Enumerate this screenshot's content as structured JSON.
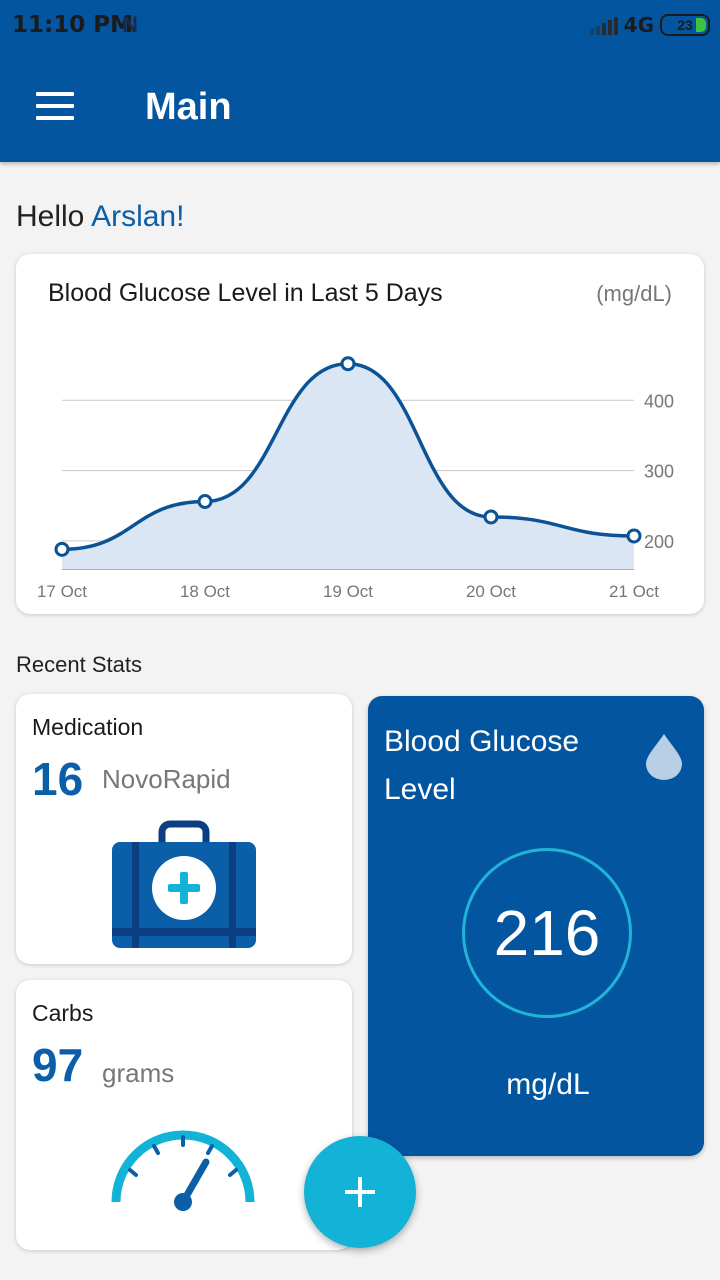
{
  "status_bar": {
    "time": "11:10 PM",
    "notification_icon": "N",
    "network": "4G",
    "battery": "23",
    "battery_color": "#3ec33e"
  },
  "app_bar": {
    "title": "Main",
    "menu_icon": "hamburger-menu-icon",
    "color": "#0455a0"
  },
  "greeting": {
    "prefix": "Hello",
    "name": "Arslan!"
  },
  "chart_card": {
    "title": "Blood Glucose Level in Last 5 Days",
    "unit": "(mg/dL)"
  },
  "chart_data": {
    "type": "area",
    "title": "Blood Glucose Level in Last 5 Days",
    "ylabel": "(mg/dL)",
    "categories": [
      "17 Oct",
      "18 Oct",
      "19 Oct",
      "20 Oct",
      "21 Oct"
    ],
    "values": [
      188,
      256,
      452,
      234,
      207
    ],
    "y_ticks": [
      200,
      300,
      400
    ],
    "ylim": [
      160,
      480
    ],
    "grid": true,
    "line_color": "#0b5394",
    "fill_color": "#dbe6f4",
    "smooth": true
  },
  "recent_stats": {
    "label": "Recent Stats",
    "medication": {
      "title": "Medication",
      "value": "16",
      "unit": "NovoRapid",
      "icon": "first-aid-kit-icon"
    },
    "carbs": {
      "title": "Carbs",
      "value": "97",
      "unit": "grams",
      "icon": "gauge-icon"
    },
    "blood_glucose": {
      "title": "Blood Glucose Level",
      "value": "216",
      "unit": "mg/dL",
      "icon": "water-drop-icon",
      "color": "#0455a0",
      "ring_color": "#1fb5d9"
    }
  },
  "fab": {
    "icon": "plus-icon",
    "color": "#12b3d6"
  }
}
